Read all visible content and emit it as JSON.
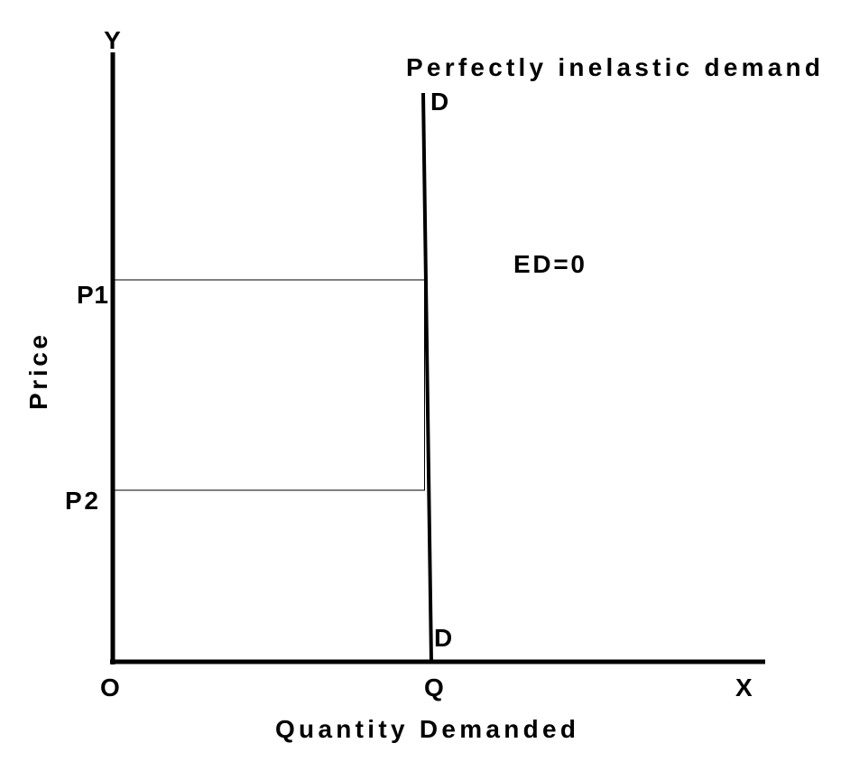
{
  "title": "Perfectly inelastic demand",
  "axes": {
    "y_end": "Y",
    "x_end": "X",
    "origin": "O",
    "y_label": "Price",
    "x_label": "Quantity Demanded"
  },
  "curve": {
    "top_label": "D",
    "bottom_label": "D",
    "elasticity": "ED=0"
  },
  "levels": {
    "p1": "P1",
    "p2": "P2",
    "q": "Q"
  }
}
